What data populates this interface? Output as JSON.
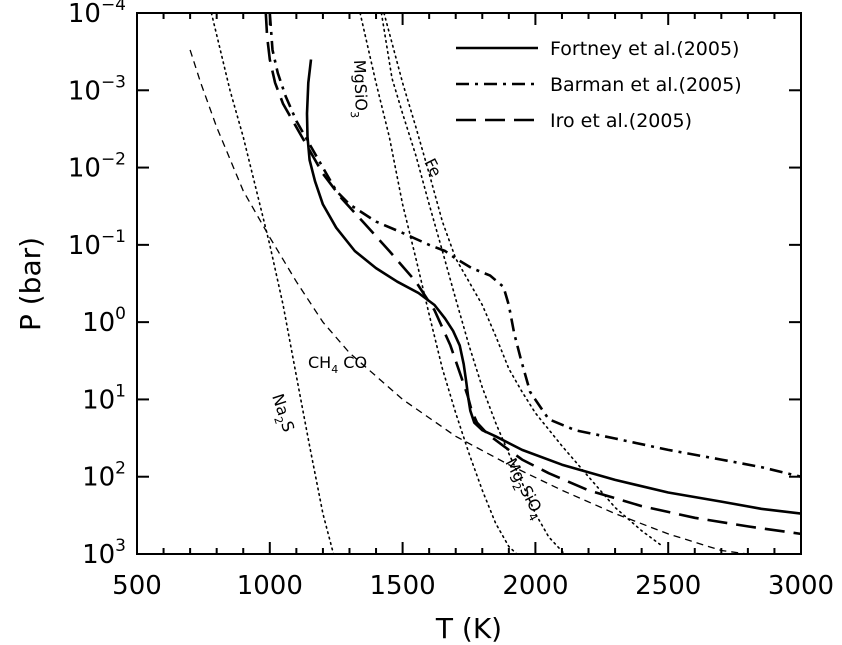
{
  "chart_data": {
    "type": "line",
    "title": "",
    "xlabel": "T (K)",
    "ylabel": "P (bar)",
    "xlim": [
      500,
      3000
    ],
    "ylim": [
      0.0001,
      1000
    ],
    "y_scale": "log",
    "y_inverted": true,
    "grid": false,
    "legend_position": "top-right",
    "x_ticks": [
      500,
      1000,
      1500,
      2000,
      2500,
      3000
    ],
    "x_tick_labels": [
      "500",
      "1000",
      "1500",
      "2000",
      "2500",
      "3000"
    ],
    "y_ticks": [
      {
        "value": 0.0001,
        "base": "10",
        "exp": "−4"
      },
      {
        "value": 0.001,
        "base": "10",
        "exp": "−3"
      },
      {
        "value": 0.01,
        "base": "10",
        "exp": "−2"
      },
      {
        "value": 0.1,
        "base": "10",
        "exp": "−1"
      },
      {
        "value": 1,
        "base": "10",
        "exp": "0"
      },
      {
        "value": 10,
        "base": "10",
        "exp": "1"
      },
      {
        "value": 100,
        "base": "10",
        "exp": "2"
      },
      {
        "value": 1000,
        "base": "10",
        "exp": "3"
      }
    ],
    "series": [
      {
        "name": "Fortney et al.(2005)",
        "style": "solid",
        "width": 2.6,
        "x": [
          1155,
          1145,
          1140,
          1142,
          1150,
          1170,
          1200,
          1250,
          1320,
          1400,
          1480,
          1560,
          1620,
          1660,
          1690,
          1715,
          1730,
          1740,
          1748,
          1755,
          1770,
          1800,
          1850,
          1950,
          2100,
          2300,
          2500,
          2700,
          2850,
          3000
        ],
        "y": [
          0.0004,
          0.0008,
          0.002,
          0.004,
          0.008,
          0.015,
          0.03,
          0.06,
          0.12,
          0.2,
          0.3,
          0.42,
          0.6,
          0.9,
          1.3,
          2,
          3.5,
          6,
          10,
          14,
          20,
          25,
          30,
          45,
          70,
          110,
          160,
          210,
          260,
          300
        ]
      },
      {
        "name": "Barman et al.(2005)",
        "style": "dashdot",
        "width": 2.6,
        "x": [
          1000,
          1010,
          1030,
          1060,
          1100,
          1150,
          1200,
          1250,
          1300,
          1400,
          1500,
          1600,
          1660,
          1700,
          1760,
          1830,
          1880,
          1900,
          1920,
          1945,
          1980,
          2050,
          2150,
          2300,
          2500,
          2700,
          2850,
          3000
        ],
        "y": [
          0.0001,
          0.0003,
          0.0006,
          0.0012,
          0.0025,
          0.005,
          0.01,
          0.02,
          0.03,
          0.05,
          0.07,
          0.1,
          0.12,
          0.15,
          0.2,
          0.25,
          0.35,
          0.6,
          1.4,
          3,
          8,
          18,
          25,
          32,
          45,
          60,
          75,
          100
        ]
      },
      {
        "name": "Iro et al.(2005)",
        "style": "dashed",
        "width": 2.6,
        "x": [
          985,
          990,
          1000,
          1020,
          1050,
          1100,
          1150,
          1200,
          1270,
          1350,
          1450,
          1550,
          1620,
          1680,
          1720,
          1745,
          1760,
          1780,
          1820,
          1880,
          1950,
          2050,
          2200,
          2400,
          2600,
          2800,
          3000
        ],
        "y": [
          0.0001,
          0.0002,
          0.0004,
          0.0008,
          0.0015,
          0.003,
          0.006,
          0.012,
          0.025,
          0.05,
          0.12,
          0.3,
          0.7,
          2,
          5,
          9,
          14,
          20,
          28,
          40,
          60,
          90,
          150,
          240,
          340,
          440,
          550
        ]
      }
    ],
    "condensation_curves": [
      {
        "label_base": "CH",
        "label_sub": "4",
        "label_rest": " CO",
        "style": "dashed-thin",
        "x": [
          700,
          740,
          800,
          900,
          1000,
          1100,
          1200,
          1300,
          1500,
          1700,
          1900,
          2100,
          2300,
          2500,
          2700,
          2800
        ],
        "y": [
          0.0003,
          0.0008,
          0.003,
          0.02,
          0.08,
          0.3,
          1,
          2.5,
          10,
          30,
          70,
          150,
          300,
          550,
          900,
          1000
        ]
      },
      {
        "label_base": "Na",
        "label_sub": "2",
        "label_rest": "S",
        "style": "dotted",
        "x": [
          780,
          850,
          900,
          950,
          1000,
          1050,
          1100,
          1150,
          1200,
          1240
        ],
        "y": [
          0.0001,
          0.001,
          0.004,
          0.02,
          0.1,
          0.6,
          5,
          40,
          300,
          1000
        ]
      },
      {
        "label_base": "MgSiO",
        "label_sub": "3",
        "label_rest": "",
        "style": "dotted",
        "x": [
          1340,
          1400,
          1450,
          1500,
          1550,
          1600,
          1650,
          1700,
          1750,
          1800,
          1850,
          1900,
          1930
        ],
        "y": [
          0.0001,
          0.0008,
          0.004,
          0.03,
          0.15,
          0.8,
          4,
          15,
          50,
          150,
          400,
          800,
          1000
        ]
      },
      {
        "label_base": "Mg",
        "label_sub": "2",
        "label_rest": "SiO",
        "label_sub2": "4",
        "style": "dotted",
        "x": [
          1420,
          1460,
          1500,
          1550,
          1600,
          1650,
          1700,
          1750,
          1800,
          1850,
          1900,
          1950,
          2000,
          2050,
          2110
        ],
        "y": [
          0.0001,
          0.0007,
          0.002,
          0.007,
          0.03,
          0.12,
          0.5,
          2,
          7,
          20,
          50,
          120,
          300,
          600,
          1000
        ]
      },
      {
        "label_base": "Fe",
        "label_sub": "",
        "label_rest": "",
        "style": "dotted",
        "x": [
          1430,
          1500,
          1550,
          1600,
          1650,
          1700,
          1750,
          1800,
          1850,
          1900,
          1950,
          2000,
          2100,
          2200,
          2300,
          2400,
          2480
        ],
        "y": [
          0.0001,
          0.0008,
          0.003,
          0.012,
          0.05,
          0.15,
          0.3,
          0.6,
          1.5,
          4,
          8,
          15,
          40,
          100,
          250,
          500,
          800
        ]
      }
    ]
  }
}
